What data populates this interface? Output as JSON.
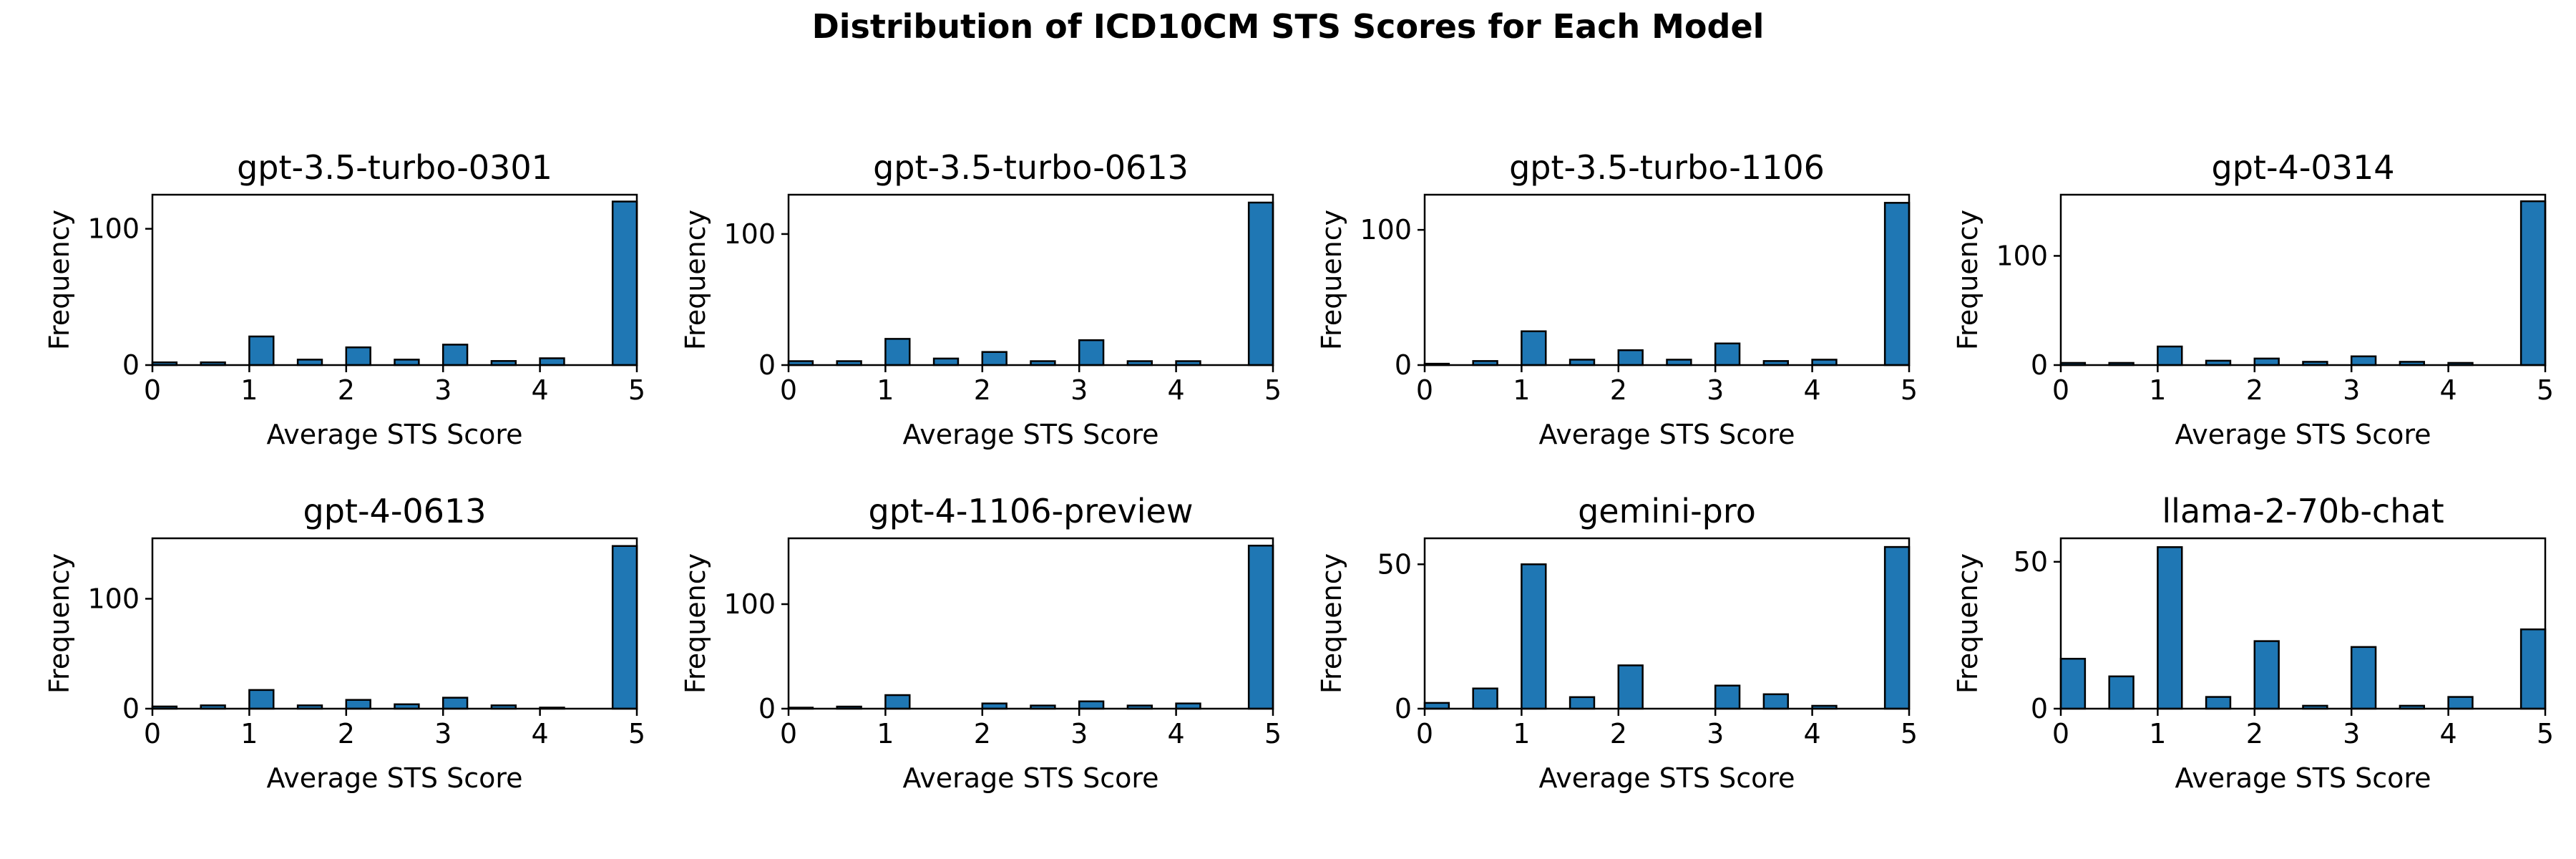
{
  "figure": {
    "title": "Distribution of ICD10CM STS Scores for Each Model",
    "bar_color": "#1f77b4",
    "edge_color": "#000000"
  },
  "chart_data": [
    {
      "type": "bar",
      "title": "gpt-3.5-turbo-0301",
      "xlabel": "Average STS Score",
      "ylabel": "Frequency",
      "xlim": [
        0,
        5
      ],
      "ylim": [
        0,
        125
      ],
      "xticks": [
        0,
        1,
        2,
        3,
        4,
        5
      ],
      "yticks": [
        0,
        100
      ],
      "bin_edges": [
        0,
        0.25,
        0.5,
        0.75,
        1,
        1.25,
        1.5,
        1.75,
        2,
        2.25,
        2.5,
        2.75,
        3,
        3.25,
        3.5,
        3.75,
        4,
        4.25,
        4.5,
        4.75,
        5
      ],
      "values": [
        2,
        0,
        2,
        0,
        21,
        0,
        4,
        0,
        13,
        0,
        4,
        0,
        15,
        0,
        3,
        0,
        5,
        0,
        0,
        120
      ]
    },
    {
      "type": "bar",
      "title": "gpt-3.5-turbo-0613",
      "xlabel": "Average STS Score",
      "ylabel": "Frequency",
      "xlim": [
        0,
        5
      ],
      "ylim": [
        0,
        130
      ],
      "xticks": [
        0,
        1,
        2,
        3,
        4,
        5
      ],
      "yticks": [
        0,
        100
      ],
      "bin_edges": [
        0,
        0.25,
        0.5,
        0.75,
        1,
        1.25,
        1.5,
        1.75,
        2,
        2.25,
        2.5,
        2.75,
        3,
        3.25,
        3.5,
        3.75,
        4,
        4.25,
        4.5,
        4.75,
        5
      ],
      "values": [
        3,
        0,
        3,
        0,
        20,
        0,
        5,
        0,
        10,
        0,
        3,
        0,
        19,
        0,
        3,
        0,
        3,
        0,
        0,
        124
      ]
    },
    {
      "type": "bar",
      "title": "gpt-3.5-turbo-1106",
      "xlabel": "Average STS Score",
      "ylabel": "Frequency",
      "xlim": [
        0,
        5
      ],
      "ylim": [
        0,
        126
      ],
      "xticks": [
        0,
        1,
        2,
        3,
        4,
        5
      ],
      "yticks": [
        0,
        100
      ],
      "bin_edges": [
        0,
        0.25,
        0.5,
        0.75,
        1,
        1.25,
        1.5,
        1.75,
        2,
        2.25,
        2.5,
        2.75,
        3,
        3.25,
        3.5,
        3.75,
        4,
        4.25,
        4.5,
        4.75,
        5
      ],
      "values": [
        1,
        0,
        3,
        0,
        25,
        0,
        4,
        0,
        11,
        0,
        4,
        0,
        16,
        0,
        3,
        0,
        4,
        0,
        0,
        120
      ]
    },
    {
      "type": "bar",
      "title": "gpt-4-0314",
      "xlabel": "Average STS Score",
      "ylabel": "Frequency",
      "xlim": [
        0,
        5
      ],
      "ylim": [
        0,
        156
      ],
      "xticks": [
        0,
        1,
        2,
        3,
        4,
        5
      ],
      "yticks": [
        0,
        100
      ],
      "bin_edges": [
        0,
        0.25,
        0.5,
        0.75,
        1,
        1.25,
        1.5,
        1.75,
        2,
        2.25,
        2.5,
        2.75,
        3,
        3.25,
        3.5,
        3.75,
        4,
        4.25,
        4.5,
        4.75,
        5
      ],
      "values": [
        2,
        0,
        2,
        0,
        17,
        0,
        4,
        0,
        6,
        0,
        3,
        0,
        8,
        0,
        3,
        0,
        2,
        0,
        0,
        150
      ]
    },
    {
      "type": "bar",
      "title": "gpt-4-0613",
      "xlabel": "Average STS Score",
      "ylabel": "Frequency",
      "xlim": [
        0,
        5
      ],
      "ylim": [
        0,
        155
      ],
      "xticks": [
        0,
        1,
        2,
        3,
        4,
        5
      ],
      "yticks": [
        0,
        100
      ],
      "bin_edges": [
        0,
        0.25,
        0.5,
        0.75,
        1,
        1.25,
        1.5,
        1.75,
        2,
        2.25,
        2.5,
        2.75,
        3,
        3.25,
        3.5,
        3.75,
        4,
        4.25,
        4.5,
        4.75,
        5
      ],
      "values": [
        2,
        0,
        3,
        0,
        17,
        0,
        3,
        0,
        8,
        0,
        4,
        0,
        10,
        0,
        3,
        0,
        1,
        0,
        0,
        148
      ]
    },
    {
      "type": "bar",
      "title": "gpt-4-1106-preview",
      "xlabel": "Average STS Score",
      "ylabel": "Frequency",
      "xlim": [
        0,
        5
      ],
      "ylim": [
        0,
        163
      ],
      "xticks": [
        0,
        1,
        2,
        3,
        4,
        5
      ],
      "yticks": [
        0,
        100
      ],
      "bin_edges": [
        0,
        0.25,
        0.5,
        0.75,
        1,
        1.25,
        1.5,
        1.75,
        2,
        2.25,
        2.5,
        2.75,
        3,
        3.25,
        3.5,
        3.75,
        4,
        4.25,
        4.5,
        4.75,
        5
      ],
      "values": [
        1,
        0,
        2,
        0,
        13,
        0,
        0,
        0,
        5,
        0,
        3,
        0,
        7,
        0,
        3,
        0,
        5,
        0,
        0,
        156
      ]
    },
    {
      "type": "bar",
      "title": "gemini-pro",
      "xlabel": "Average STS Score",
      "ylabel": "Frequency",
      "xlim": [
        0,
        5
      ],
      "ylim": [
        0,
        59
      ],
      "xticks": [
        0,
        1,
        2,
        3,
        4,
        5
      ],
      "yticks": [
        0,
        50
      ],
      "bin_edges": [
        0,
        0.25,
        0.5,
        0.75,
        1,
        1.25,
        1.5,
        1.75,
        2,
        2.25,
        2.5,
        2.75,
        3,
        3.25,
        3.5,
        3.75,
        4,
        4.25,
        4.5,
        4.75,
        5
      ],
      "values": [
        2,
        0,
        7,
        0,
        50,
        0,
        4,
        0,
        15,
        0,
        0,
        0,
        8,
        0,
        5,
        0,
        1,
        0,
        0,
        56
      ]
    },
    {
      "type": "bar",
      "title": "llama-2-70b-chat",
      "xlabel": "Average STS Score",
      "ylabel": "Frequency",
      "xlim": [
        0,
        5
      ],
      "ylim": [
        0,
        58
      ],
      "xticks": [
        0,
        1,
        2,
        3,
        4,
        5
      ],
      "yticks": [
        0,
        50
      ],
      "bin_edges": [
        0,
        0.25,
        0.5,
        0.75,
        1,
        1.25,
        1.5,
        1.75,
        2,
        2.25,
        2.5,
        2.75,
        3,
        3.25,
        3.5,
        3.75,
        4,
        4.25,
        4.5,
        4.75,
        5
      ],
      "values": [
        17,
        0,
        11,
        0,
        55,
        0,
        4,
        0,
        23,
        0,
        1,
        0,
        21,
        0,
        1,
        0,
        4,
        0,
        0,
        27
      ]
    }
  ]
}
